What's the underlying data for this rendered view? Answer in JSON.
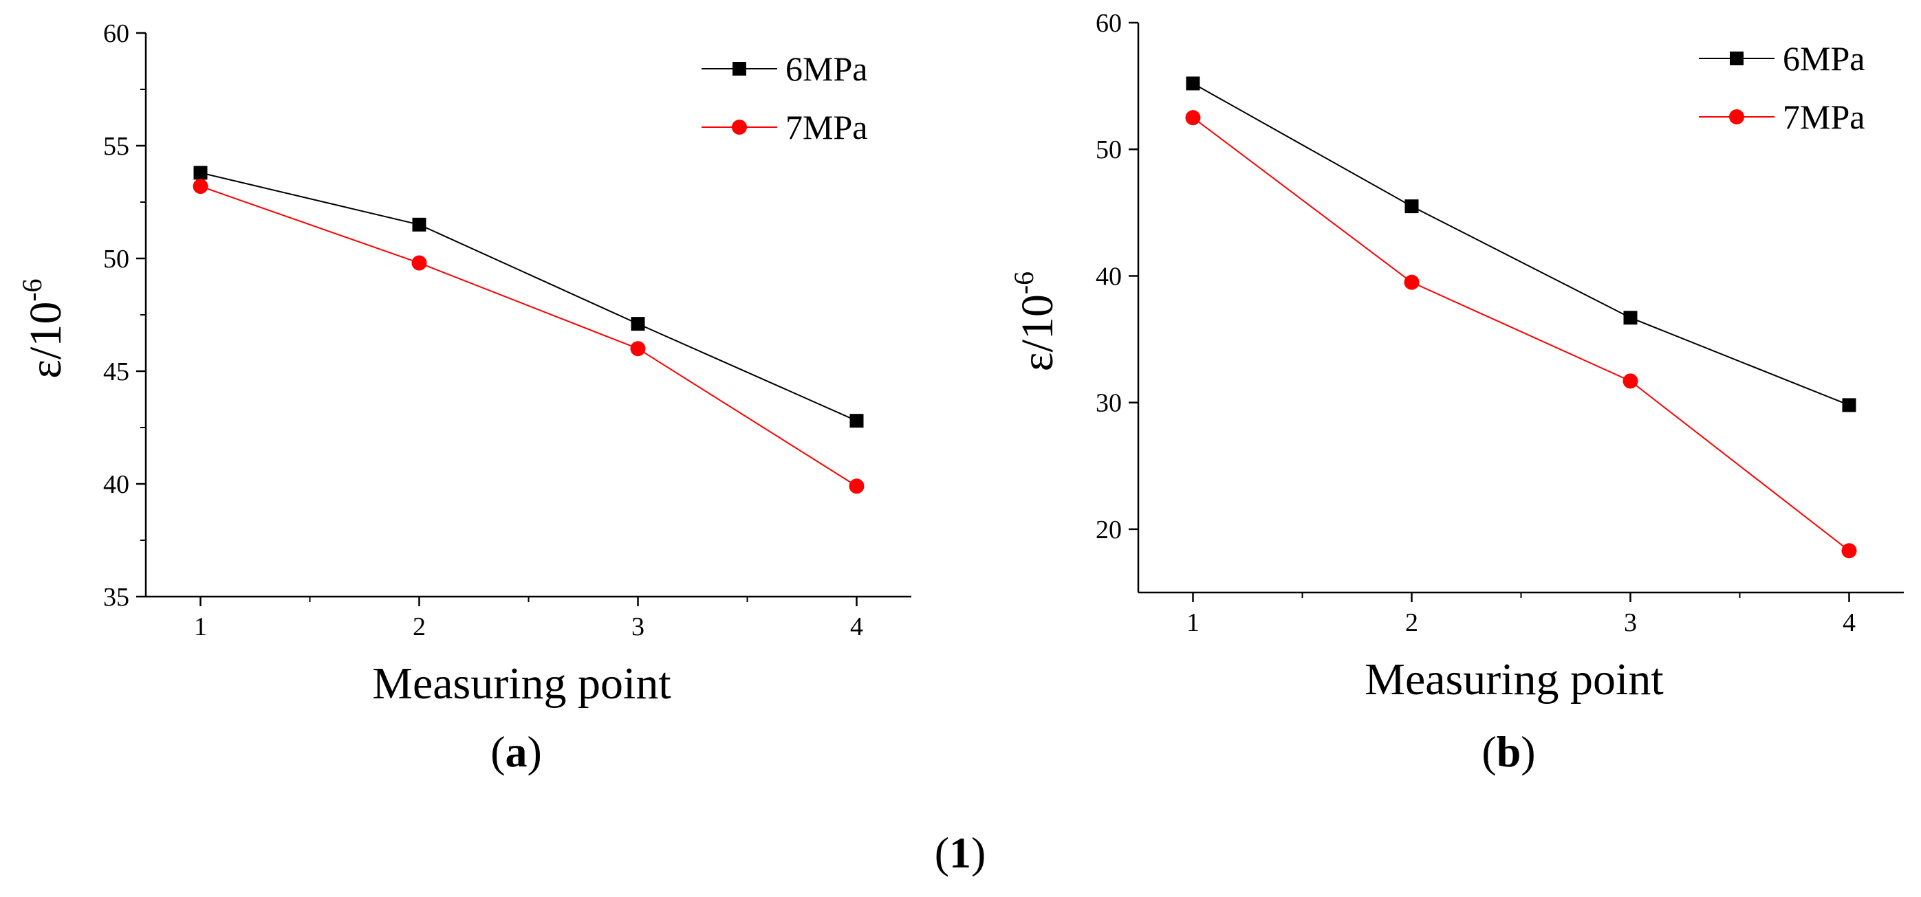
{
  "figure": {
    "caption_open": "(",
    "caption_id": "1",
    "caption_close": ")"
  },
  "chart_data": [
    {
      "type": "line",
      "panel_label": "a",
      "title": "",
      "xlabel": "Measuring point",
      "ylabel_base": "ε/10",
      "ylabel_exp": "-6",
      "x": [
        1,
        2,
        3,
        4
      ],
      "xlim": [
        0.75,
        4.25
      ],
      "xticks": [
        1,
        2,
        3,
        4
      ],
      "ylim": [
        35,
        60
      ],
      "yticks": [
        35,
        40,
        45,
        50,
        55,
        60
      ],
      "grid": false,
      "legend_position": "top-right",
      "series": [
        {
          "name": "6MPa",
          "values": [
            53.8,
            51.5,
            47.1,
            42.8
          ],
          "color": "#000000",
          "marker": "square"
        },
        {
          "name": "7MPa",
          "values": [
            53.2,
            49.8,
            46.0,
            39.9
          ],
          "color": "#ff0000",
          "marker": "circle"
        }
      ]
    },
    {
      "type": "line",
      "panel_label": "b",
      "title": "",
      "xlabel": "Measuring point",
      "ylabel_base": "ε/10",
      "ylabel_exp": "-6",
      "x": [
        1,
        2,
        3,
        4
      ],
      "xlim": [
        0.75,
        4.25
      ],
      "xticks": [
        1,
        2,
        3,
        4
      ],
      "ylim": [
        15,
        60
      ],
      "yticks": [
        20,
        30,
        40,
        50,
        60
      ],
      "grid": false,
      "legend_position": "top-right",
      "series": [
        {
          "name": "6MPa",
          "values": [
            55.2,
            45.5,
            36.7,
            29.8
          ],
          "color": "#000000",
          "marker": "square"
        },
        {
          "name": "7MPa",
          "values": [
            52.5,
            39.5,
            31.7,
            18.3
          ],
          "color": "#ff0000",
          "marker": "circle"
        }
      ]
    }
  ]
}
